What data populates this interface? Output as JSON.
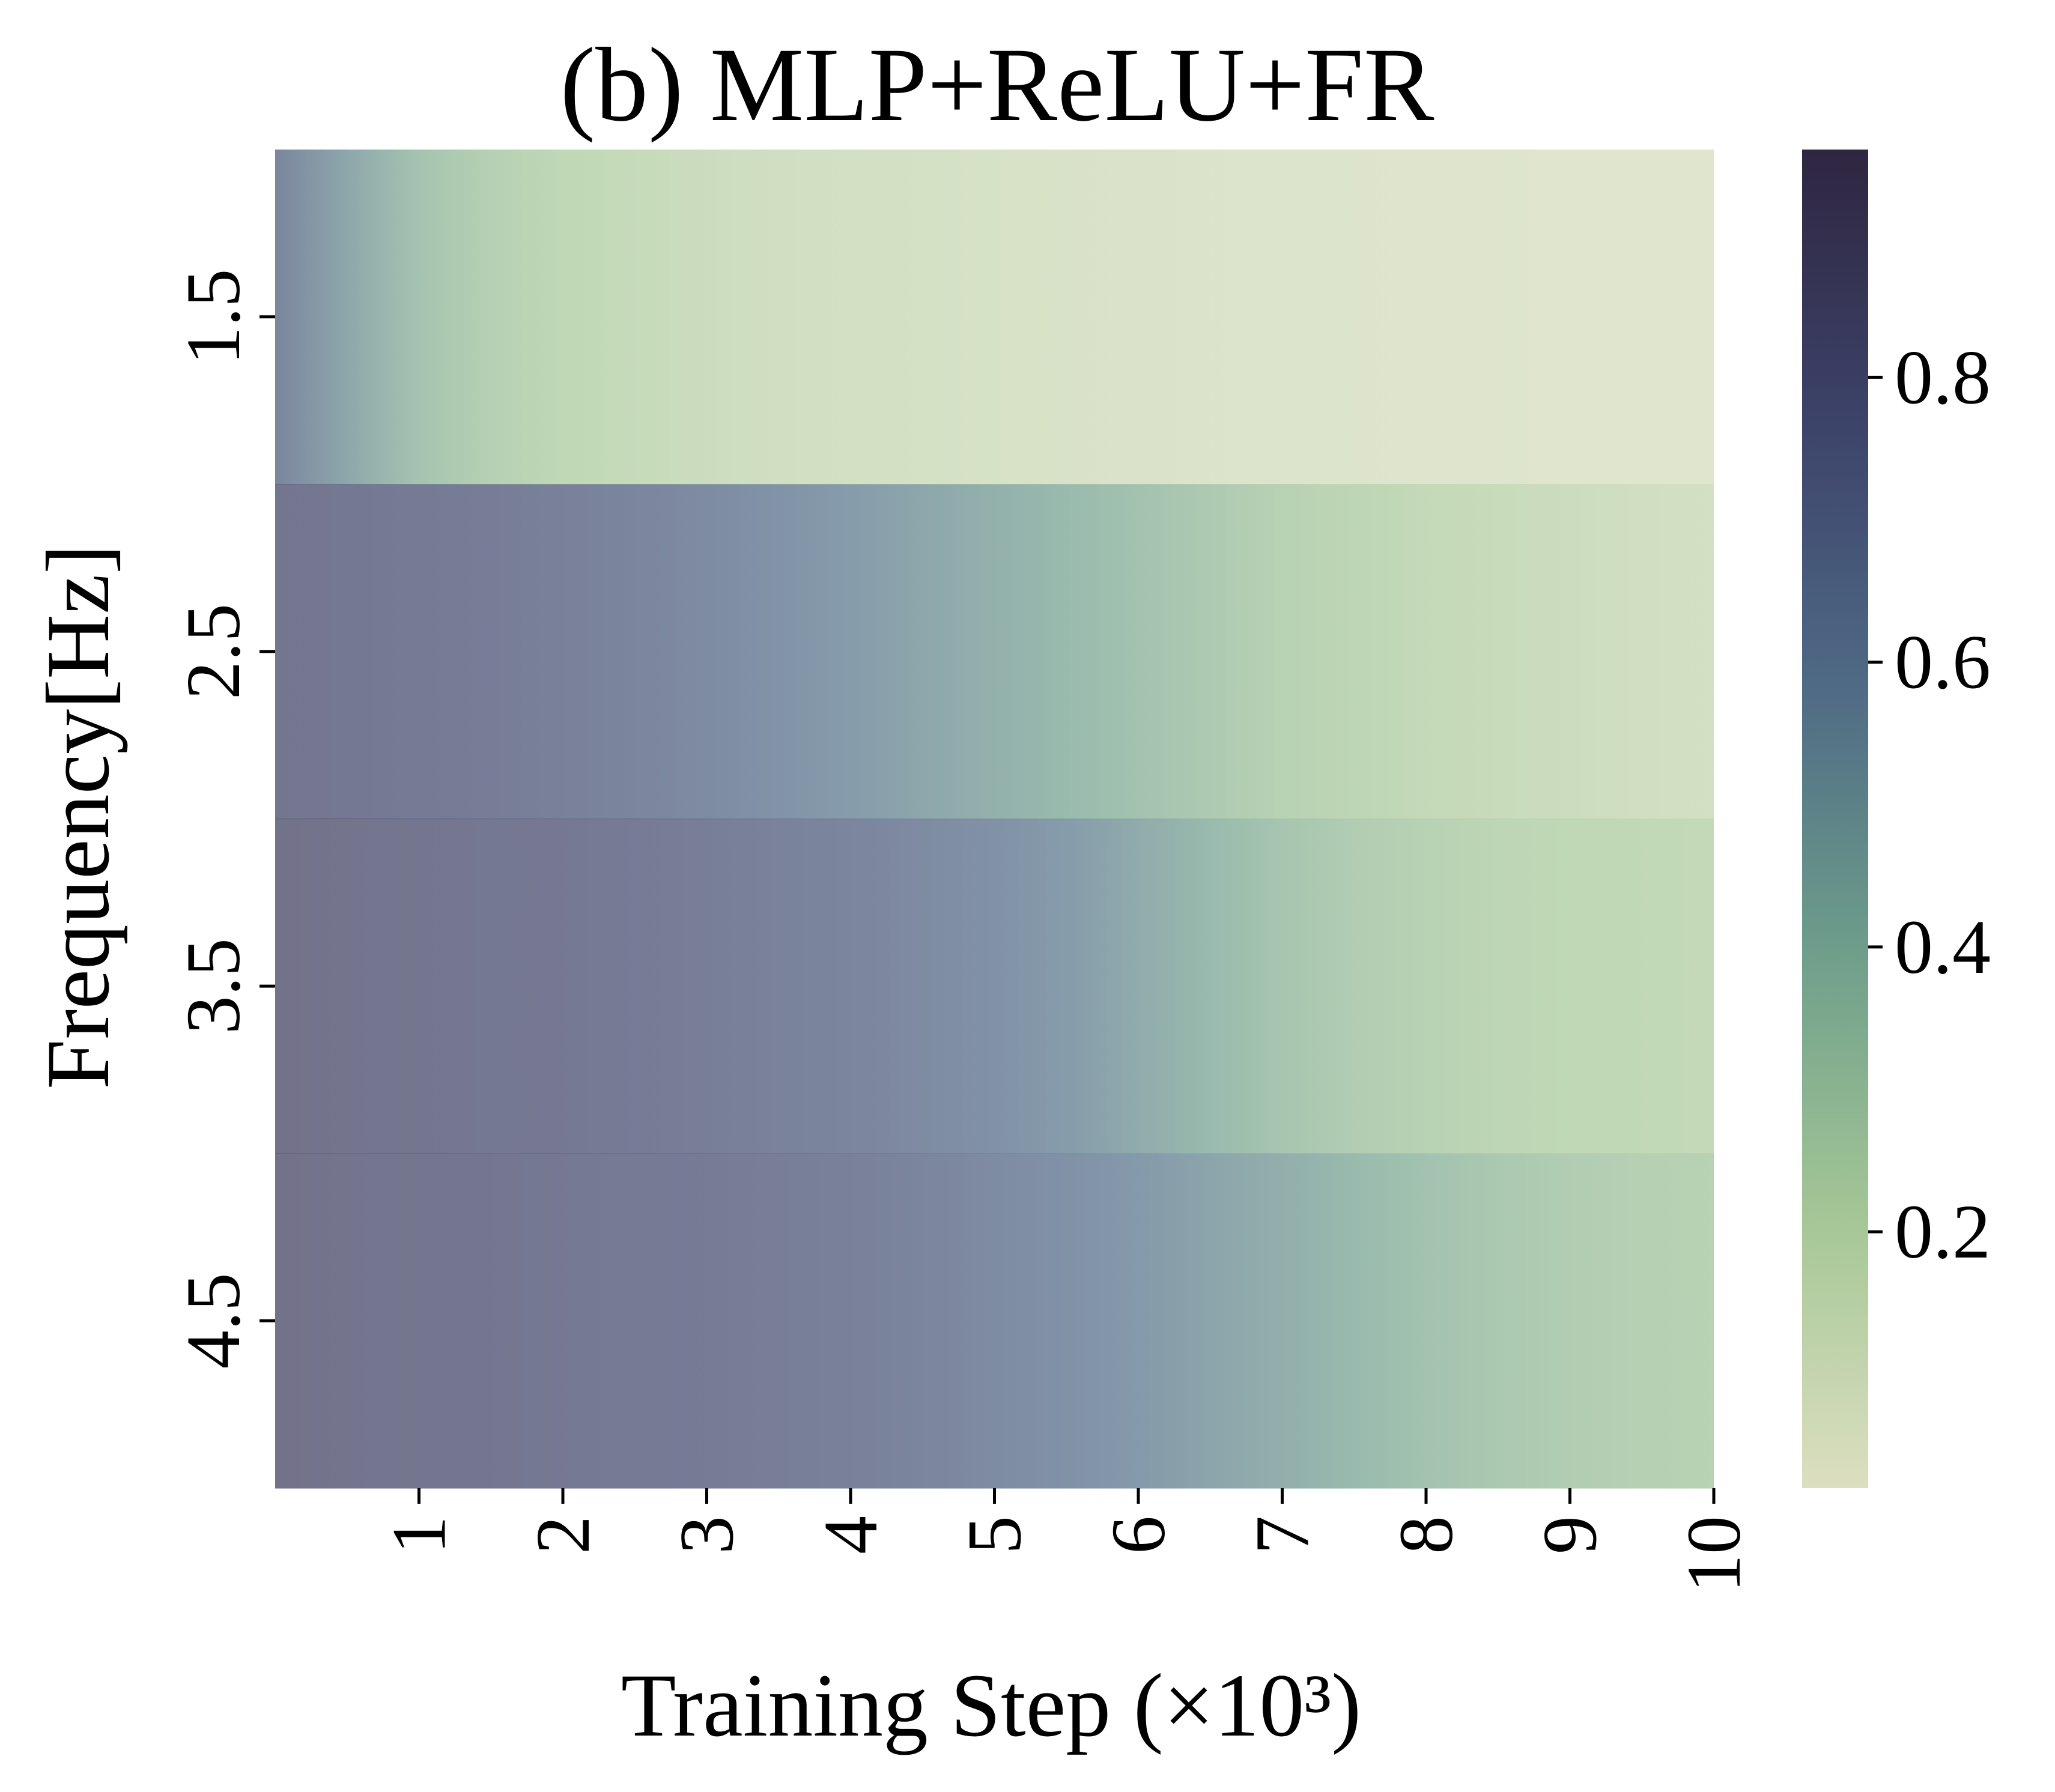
{
  "chart_data": {
    "type": "heatmap",
    "title": "(b) MLP+ReLU+FR",
    "xlabel": "Training Step (×10³)",
    "ylabel": "Frequency[Hz]",
    "x_range": [
      0,
      10
    ],
    "x_ticks": [
      "1",
      "2",
      "3",
      "4",
      "5",
      "6",
      "7",
      "8",
      "9",
      "10"
    ],
    "y_categories": [
      "1.5",
      "2.5",
      "3.5",
      "4.5"
    ],
    "colorbar": {
      "ticks": [
        "0.2",
        "0.4",
        "0.6",
        "0.8"
      ],
      "range": [
        0.02,
        0.96
      ],
      "colors": [
        "#dcdfc0",
        "#a5c796",
        "#6e9e8a",
        "#4e6a86",
        "#3c4269",
        "#2f2640"
      ]
    },
    "cell_opacity": 0.7,
    "x": [
      0,
      0.5,
      1,
      1.5,
      2,
      2.5,
      3,
      3.5,
      4,
      4.5,
      5,
      5.5,
      6,
      6.5,
      7,
      7.5,
      8,
      8.5,
      9,
      9.5,
      10
    ],
    "rows": [
      {
        "y": "1.5",
        "values": [
          0.7,
          0.5,
          0.34,
          0.26,
          0.21,
          0.18,
          0.15,
          0.13,
          0.12,
          0.11,
          0.1,
          0.09,
          0.08,
          0.075,
          0.07,
          0.065,
          0.06,
          0.06,
          0.055,
          0.05,
          0.05
        ]
      },
      {
        "y": "2.5",
        "values": [
          0.82,
          0.8,
          0.78,
          0.76,
          0.73,
          0.7,
          0.66,
          0.61,
          0.56,
          0.5,
          0.45,
          0.4,
          0.35,
          0.3,
          0.25,
          0.22,
          0.19,
          0.17,
          0.15,
          0.13,
          0.12
        ]
      },
      {
        "y": "3.5",
        "values": [
          0.86,
          0.83,
          0.82,
          0.8,
          0.79,
          0.77,
          0.75,
          0.72,
          0.7,
          0.66,
          0.62,
          0.56,
          0.48,
          0.4,
          0.33,
          0.28,
          0.25,
          0.22,
          0.21,
          0.2,
          0.19
        ]
      },
      {
        "y": "4.5",
        "values": [
          0.86,
          0.83,
          0.82,
          0.81,
          0.79,
          0.78,
          0.77,
          0.75,
          0.73,
          0.7,
          0.66,
          0.62,
          0.57,
          0.51,
          0.46,
          0.4,
          0.35,
          0.31,
          0.28,
          0.26,
          0.25
        ]
      }
    ]
  }
}
